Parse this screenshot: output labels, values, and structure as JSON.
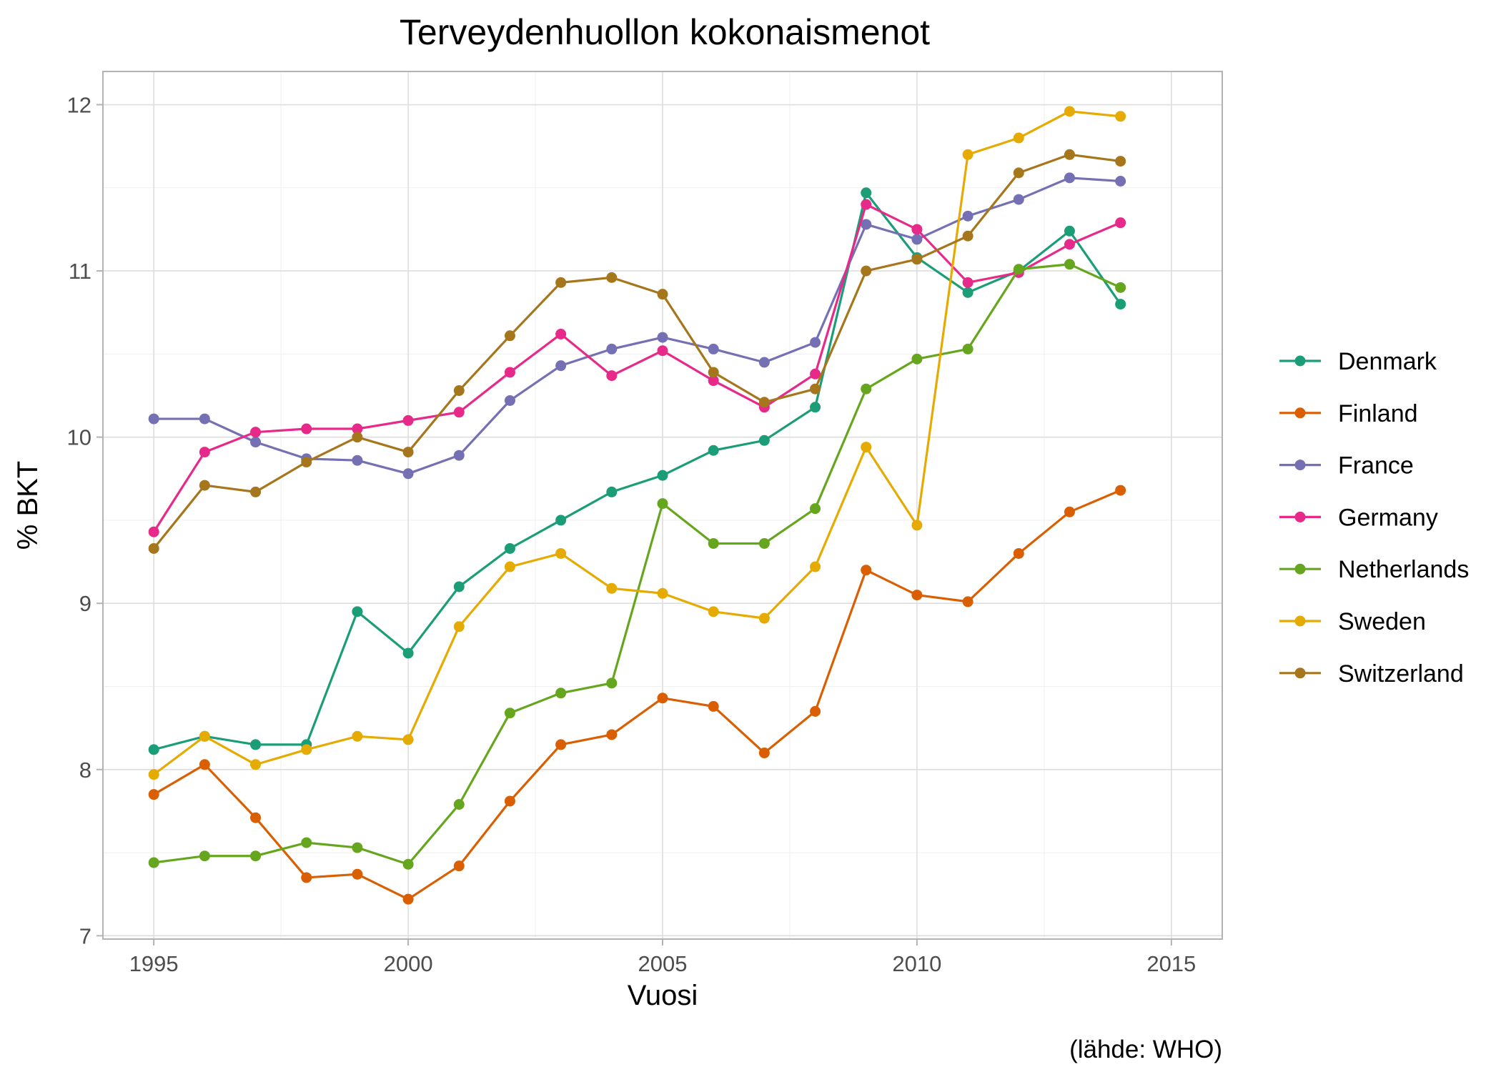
{
  "chart_data": {
    "type": "line",
    "title": "Terveydenhuollon kokonaismenot",
    "xlabel": "Vuosi",
    "ylabel": "% BKT",
    "caption": "(lähde: WHO)",
    "xlim": [
      1994,
      2016
    ],
    "ylim": [
      6.98,
      12.2
    ],
    "x_ticks": [
      1995,
      2000,
      2005,
      2010,
      2015
    ],
    "y_ticks": [
      7,
      8,
      9,
      10,
      11,
      12
    ],
    "grid": true,
    "legend_position": "right",
    "x": [
      1995,
      1996,
      1997,
      1998,
      1999,
      2000,
      2001,
      2002,
      2003,
      2004,
      2005,
      2006,
      2007,
      2008,
      2009,
      2010,
      2011,
      2012,
      2013,
      2014
    ],
    "series": [
      {
        "name": "Denmark",
        "color": "#1b9e77",
        "values": [
          8.12,
          8.2,
          8.15,
          8.15,
          8.95,
          8.7,
          9.1,
          9.33,
          9.5,
          9.67,
          9.77,
          9.92,
          9.98,
          10.18,
          11.47,
          11.08,
          10.87,
          11.0,
          11.24,
          10.8
        ]
      },
      {
        "name": "Finland",
        "color": "#d95f02",
        "values": [
          7.85,
          8.03,
          7.71,
          7.35,
          7.37,
          7.22,
          7.42,
          7.81,
          8.15,
          8.21,
          8.43,
          8.38,
          8.1,
          8.35,
          9.2,
          9.05,
          9.01,
          9.3,
          9.55,
          9.68
        ]
      },
      {
        "name": "France",
        "color": "#7570b3",
        "values": [
          10.11,
          10.11,
          9.97,
          9.87,
          9.86,
          9.78,
          9.89,
          10.22,
          10.43,
          10.53,
          10.6,
          10.53,
          10.45,
          10.57,
          11.28,
          11.19,
          11.33,
          11.43,
          11.56,
          11.54
        ]
      },
      {
        "name": "Germany",
        "color": "#e7298a",
        "values": [
          9.43,
          9.91,
          10.03,
          10.05,
          10.05,
          10.1,
          10.15,
          10.39,
          10.62,
          10.37,
          10.52,
          10.34,
          10.18,
          10.38,
          11.4,
          11.25,
          10.93,
          10.99,
          11.16,
          11.29
        ]
      },
      {
        "name": "Netherlands",
        "color": "#66a61e",
        "values": [
          7.44,
          7.48,
          7.48,
          7.56,
          7.53,
          7.43,
          7.79,
          8.34,
          8.46,
          8.52,
          9.6,
          9.36,
          9.36,
          9.57,
          10.29,
          10.47,
          10.53,
          11.01,
          11.04,
          10.9
        ]
      },
      {
        "name": "Sweden",
        "color": "#e6ab02",
        "values": [
          7.97,
          8.2,
          8.03,
          8.12,
          8.2,
          8.18,
          8.86,
          9.22,
          9.3,
          9.09,
          9.06,
          8.95,
          8.91,
          9.22,
          9.94,
          9.47,
          11.7,
          11.8,
          11.96,
          11.93
        ]
      },
      {
        "name": "Switzerland",
        "color": "#a6761d",
        "values": [
          9.33,
          9.71,
          9.67,
          9.85,
          10.0,
          9.91,
          10.28,
          10.61,
          10.93,
          10.96,
          10.86,
          10.39,
          10.21,
          10.29,
          11.0,
          11.07,
          11.21,
          11.59,
          11.7,
          11.66
        ]
      }
    ]
  }
}
